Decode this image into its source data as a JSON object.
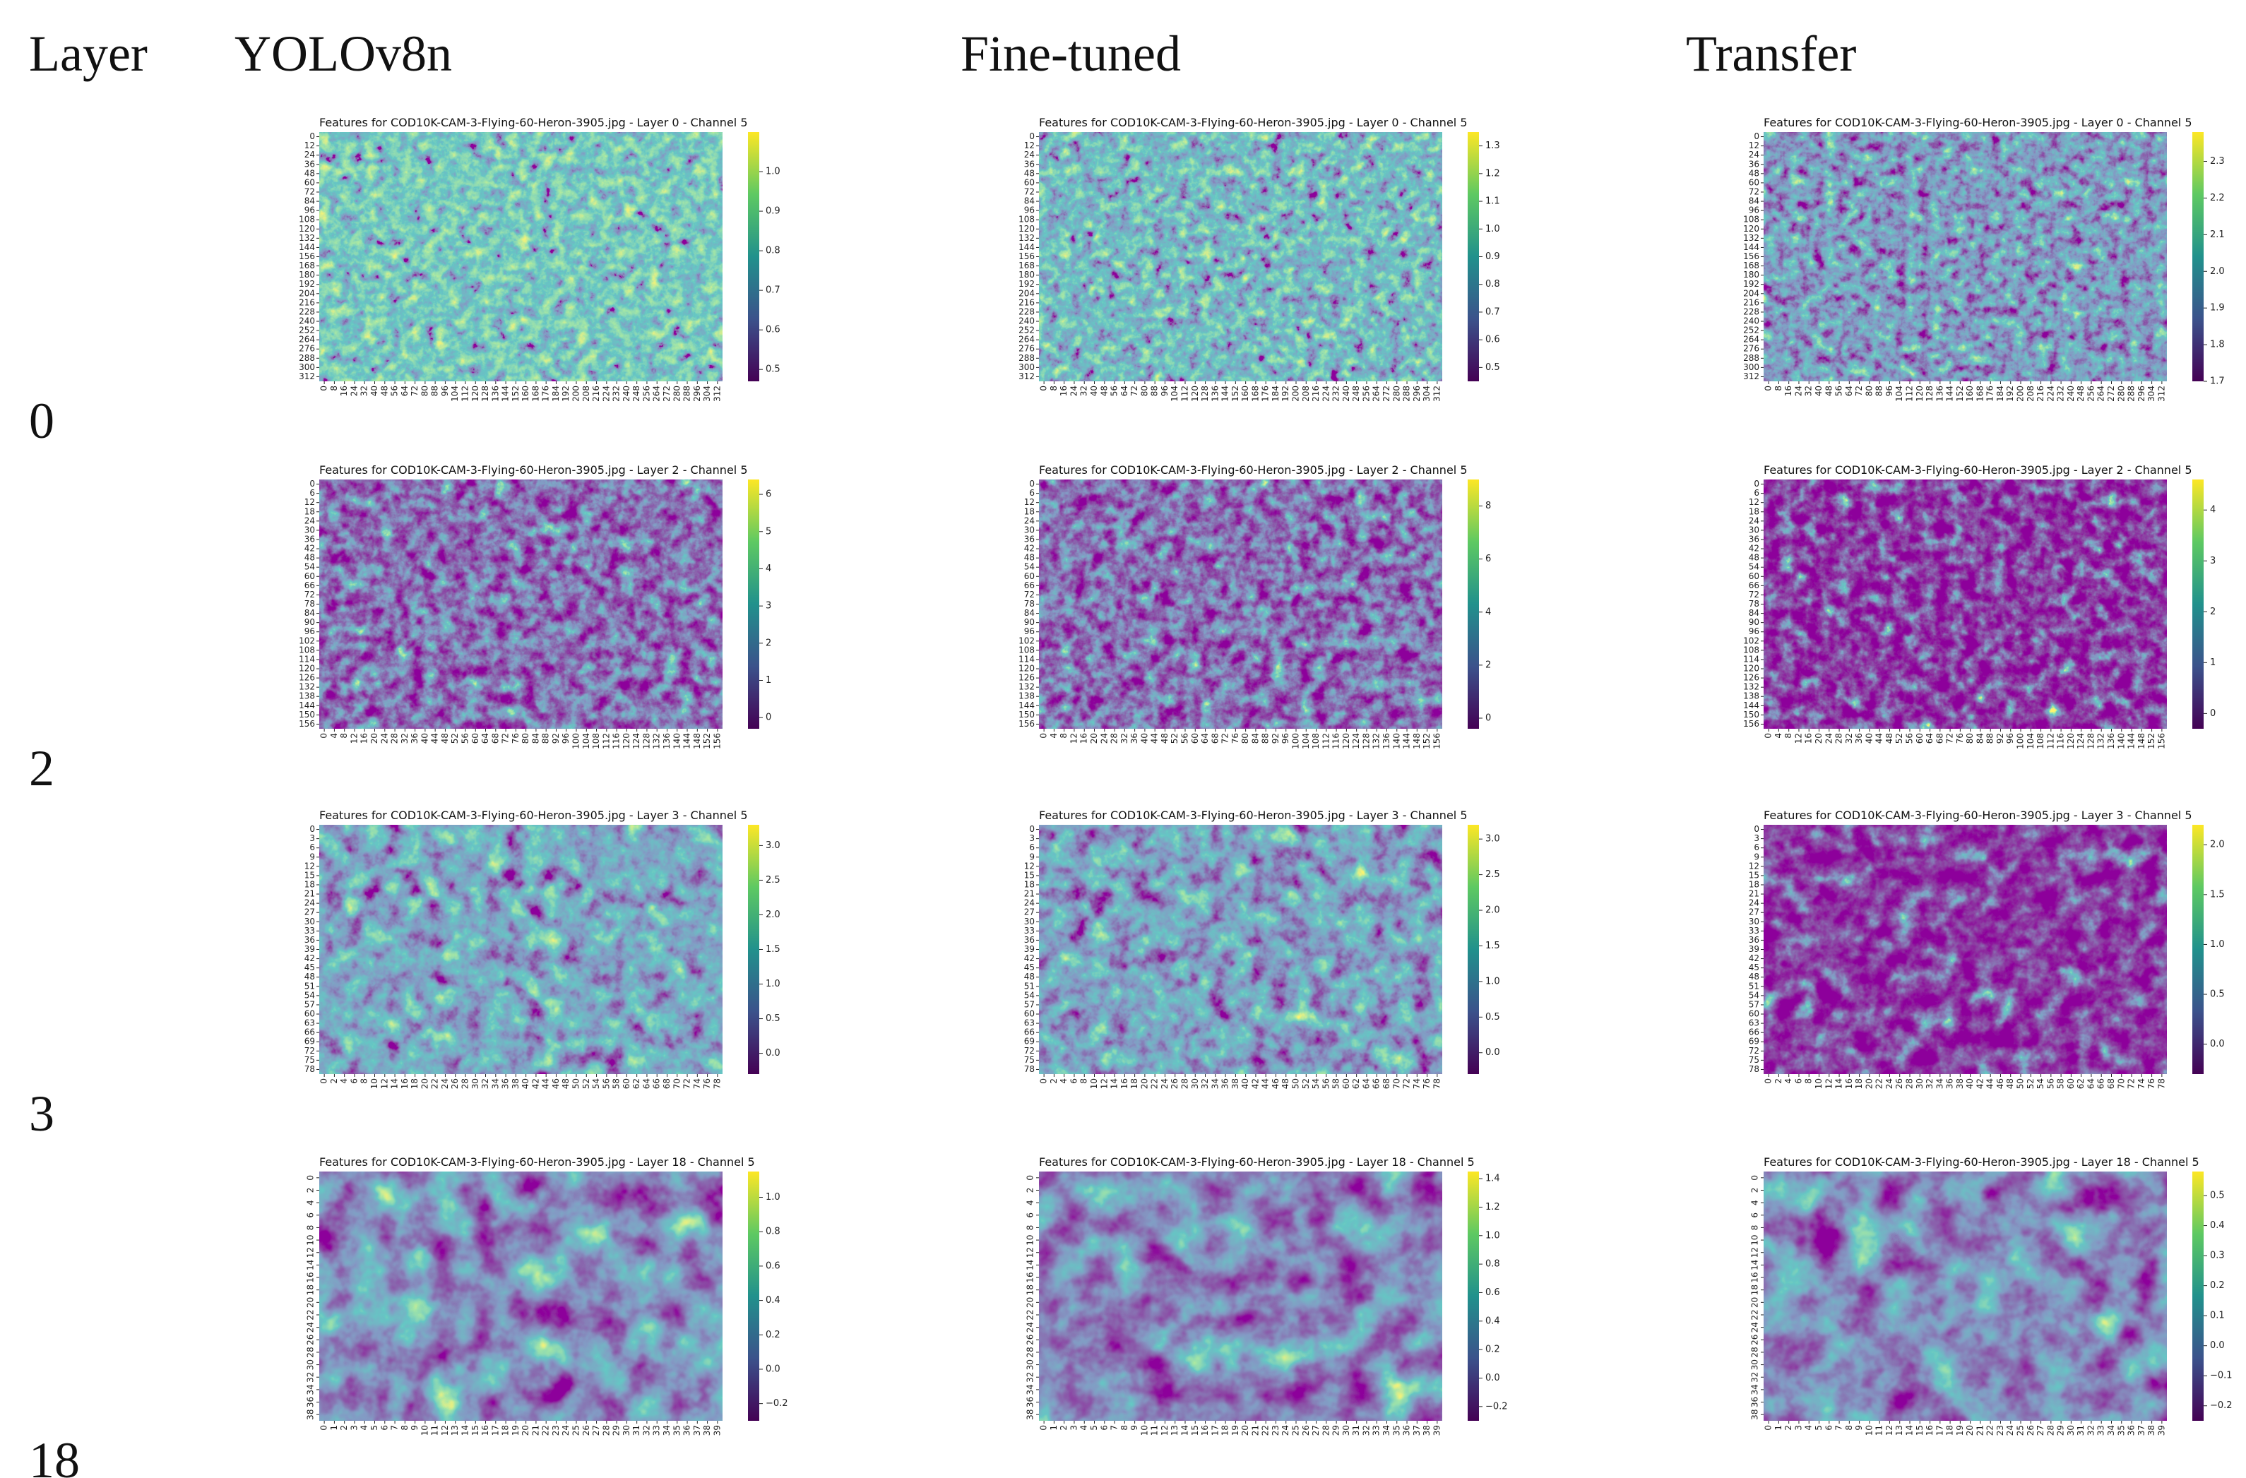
{
  "headers": {
    "layer": "Layer",
    "columns": [
      "YOLOv8n",
      "Fine-tuned",
      "Transfer"
    ]
  },
  "rows": [
    {
      "label": "0",
      "yticks": [
        0,
        12,
        24,
        36,
        48,
        60,
        72,
        84,
        96,
        108,
        120,
        132,
        144,
        156,
        168,
        180,
        192,
        204,
        216,
        228,
        240,
        252,
        264,
        276,
        288,
        300,
        312
      ],
      "xticks": [
        0,
        8,
        16,
        24,
        32,
        40,
        48,
        56,
        64,
        72,
        80,
        88,
        96,
        104,
        112,
        120,
        128,
        136,
        144,
        152,
        160,
        168,
        176,
        184,
        192,
        200,
        208,
        216,
        224,
        232,
        240,
        248,
        256,
        264,
        272,
        280,
        288,
        296,
        304,
        312
      ],
      "panels": [
        {
          "title": "Features for COD10K-CAM-3-Flying-60-Heron-3905.jpg - Layer 0 - Channel 5",
          "clim": [
            0.47,
            1.1
          ],
          "cticks": [
            0.5,
            0.6,
            0.7,
            0.8,
            0.9,
            {
              "value": 1,
              "label": "1.0"
            }
          ]
        },
        {
          "title": "Features for COD10K-CAM-3-Flying-60-Heron-3905.jpg - Layer 0 - Channel 5",
          "clim": [
            0.45,
            1.35
          ],
          "cticks": [
            0.5,
            0.6,
            0.7,
            0.8,
            0.9,
            {
              "value": 1,
              "label": "1.0"
            },
            1.1,
            1.2,
            1.3
          ]
        },
        {
          "title": "Features for COD10K-CAM-3-Flying-60-Heron-3905.jpg - Layer 0 - Channel 5",
          "clim": [
            1.7,
            2.38
          ],
          "cticks": [
            1.7,
            1.8,
            1.9,
            {
              "value": 2,
              "label": "2.0"
            },
            2.1,
            2.2,
            2.3
          ]
        }
      ]
    },
    {
      "label": "2",
      "yticks": [
        0,
        6,
        12,
        18,
        24,
        30,
        36,
        42,
        48,
        54,
        60,
        66,
        72,
        78,
        84,
        90,
        96,
        102,
        108,
        114,
        120,
        126,
        132,
        138,
        144,
        150,
        156
      ],
      "xticks": [
        0,
        4,
        8,
        12,
        16,
        20,
        24,
        28,
        32,
        36,
        40,
        44,
        48,
        52,
        56,
        60,
        64,
        68,
        72,
        76,
        80,
        84,
        88,
        92,
        96,
        100,
        104,
        108,
        112,
        116,
        120,
        124,
        128,
        132,
        136,
        140,
        144,
        148,
        152,
        156
      ],
      "panels": [
        {
          "title": "Features for COD10K-CAM-3-Flying-60-Heron-3905.jpg - Layer 2 - Channel 5",
          "clim": [
            -0.3,
            6.4
          ],
          "cticks": [
            0,
            1,
            2,
            3,
            4,
            5,
            6
          ]
        },
        {
          "title": "Features for COD10K-CAM-3-Flying-60-Heron-3905.jpg - Layer 2 - Channel 5",
          "clim": [
            -0.4,
            9
          ],
          "cticks": [
            0,
            2,
            4,
            6,
            8
          ]
        },
        {
          "title": "Features for COD10K-CAM-3-Flying-60-Heron-3905.jpg - Layer 2 - Channel 5",
          "clim": [
            -0.3,
            4.6
          ],
          "cticks": [
            0,
            1,
            2,
            3,
            4
          ]
        }
      ]
    },
    {
      "label": "3",
      "yticks": [
        0,
        3,
        6,
        9,
        12,
        15,
        18,
        21,
        24,
        27,
        30,
        33,
        36,
        39,
        42,
        45,
        48,
        51,
        54,
        57,
        60,
        63,
        66,
        69,
        72,
        75,
        78
      ],
      "xticks": [
        0,
        2,
        4,
        6,
        8,
        10,
        12,
        14,
        16,
        18,
        20,
        22,
        24,
        26,
        28,
        30,
        32,
        34,
        36,
        38,
        40,
        42,
        44,
        46,
        48,
        50,
        52,
        54,
        56,
        58,
        60,
        62,
        64,
        66,
        68,
        70,
        72,
        74,
        76,
        78
      ],
      "panels": [
        {
          "title": "Features for COD10K-CAM-3-Flying-60-Heron-3905.jpg - Layer 3 - Channel 5",
          "clim": [
            -0.3,
            3.3
          ],
          "cticks": [
            {
              "value": 0,
              "label": "0.0"
            },
            0.5,
            {
              "value": 1,
              "label": "1.0"
            },
            1.5,
            {
              "value": 2,
              "label": "2.0"
            },
            2.5,
            {
              "value": 3,
              "label": "3.0"
            }
          ]
        },
        {
          "title": "Features for COD10K-CAM-3-Flying-60-Heron-3905.jpg - Layer 3 - Channel 5",
          "clim": [
            -0.3,
            3.2
          ],
          "cticks": [
            {
              "value": 0,
              "label": "0.0"
            },
            0.5,
            {
              "value": 1,
              "label": "1.0"
            },
            1.5,
            {
              "value": 2,
              "label": "2.0"
            },
            2.5,
            {
              "value": 3,
              "label": "3.0"
            }
          ]
        },
        {
          "title": "Features for COD10K-CAM-3-Flying-60-Heron-3905.jpg - Layer 3 - Channel 5",
          "clim": [
            -0.3,
            2.2
          ],
          "cticks": [
            {
              "value": 0,
              "label": "0.0"
            },
            0.5,
            {
              "value": 1,
              "label": "1.0"
            },
            1.5,
            {
              "value": 2,
              "label": "2.0"
            }
          ]
        }
      ]
    },
    {
      "label": "18",
      "yticks": [
        0,
        2,
        4,
        6,
        8,
        10,
        12,
        14,
        16,
        18,
        20,
        22,
        24,
        26,
        28,
        30,
        32,
        34,
        36,
        38
      ],
      "xticks": [
        0,
        1,
        2,
        3,
        4,
        5,
        6,
        7,
        8,
        9,
        10,
        11,
        12,
        13,
        14,
        15,
        16,
        17,
        18,
        19,
        20,
        21,
        22,
        23,
        24,
        25,
        26,
        27,
        28,
        29,
        30,
        31,
        32,
        33,
        34,
        35,
        36,
        37,
        38,
        39
      ],
      "panels": [
        {
          "title": "Features for COD10K-CAM-3-Flying-60-Heron-3905.jpg - Layer 18 - Channel 5",
          "clim": [
            -0.3,
            1.15
          ],
          "cticks": [
            {
              "value": -0.2,
              "label": "−0.2"
            },
            {
              "value": 0,
              "label": "0.0"
            },
            0.2,
            0.4,
            0.6,
            0.8,
            {
              "value": 1,
              "label": "1.0"
            }
          ]
        },
        {
          "title": "Features for COD10K-CAM-3-Flying-60-Heron-3905.jpg - Layer 18 - Channel 5",
          "clim": [
            -0.3,
            1.45
          ],
          "cticks": [
            {
              "value": -0.2,
              "label": "−0.2"
            },
            {
              "value": 0,
              "label": "0.0"
            },
            0.2,
            0.4,
            0.6,
            0.8,
            {
              "value": 1,
              "label": "1.0"
            },
            1.2,
            1.4
          ]
        },
        {
          "title": "Features for COD10K-CAM-3-Flying-60-Heron-3905.jpg - Layer 18 - Channel 5",
          "clim": [
            -0.25,
            0.58
          ],
          "cticks": [
            {
              "value": -0.2,
              "label": "−0.2"
            },
            {
              "value": -0.1,
              "label": "−0.1"
            },
            {
              "value": 0,
              "label": "0.0"
            },
            0.1,
            0.2,
            0.3,
            0.4,
            0.5
          ]
        }
      ]
    }
  ]
}
